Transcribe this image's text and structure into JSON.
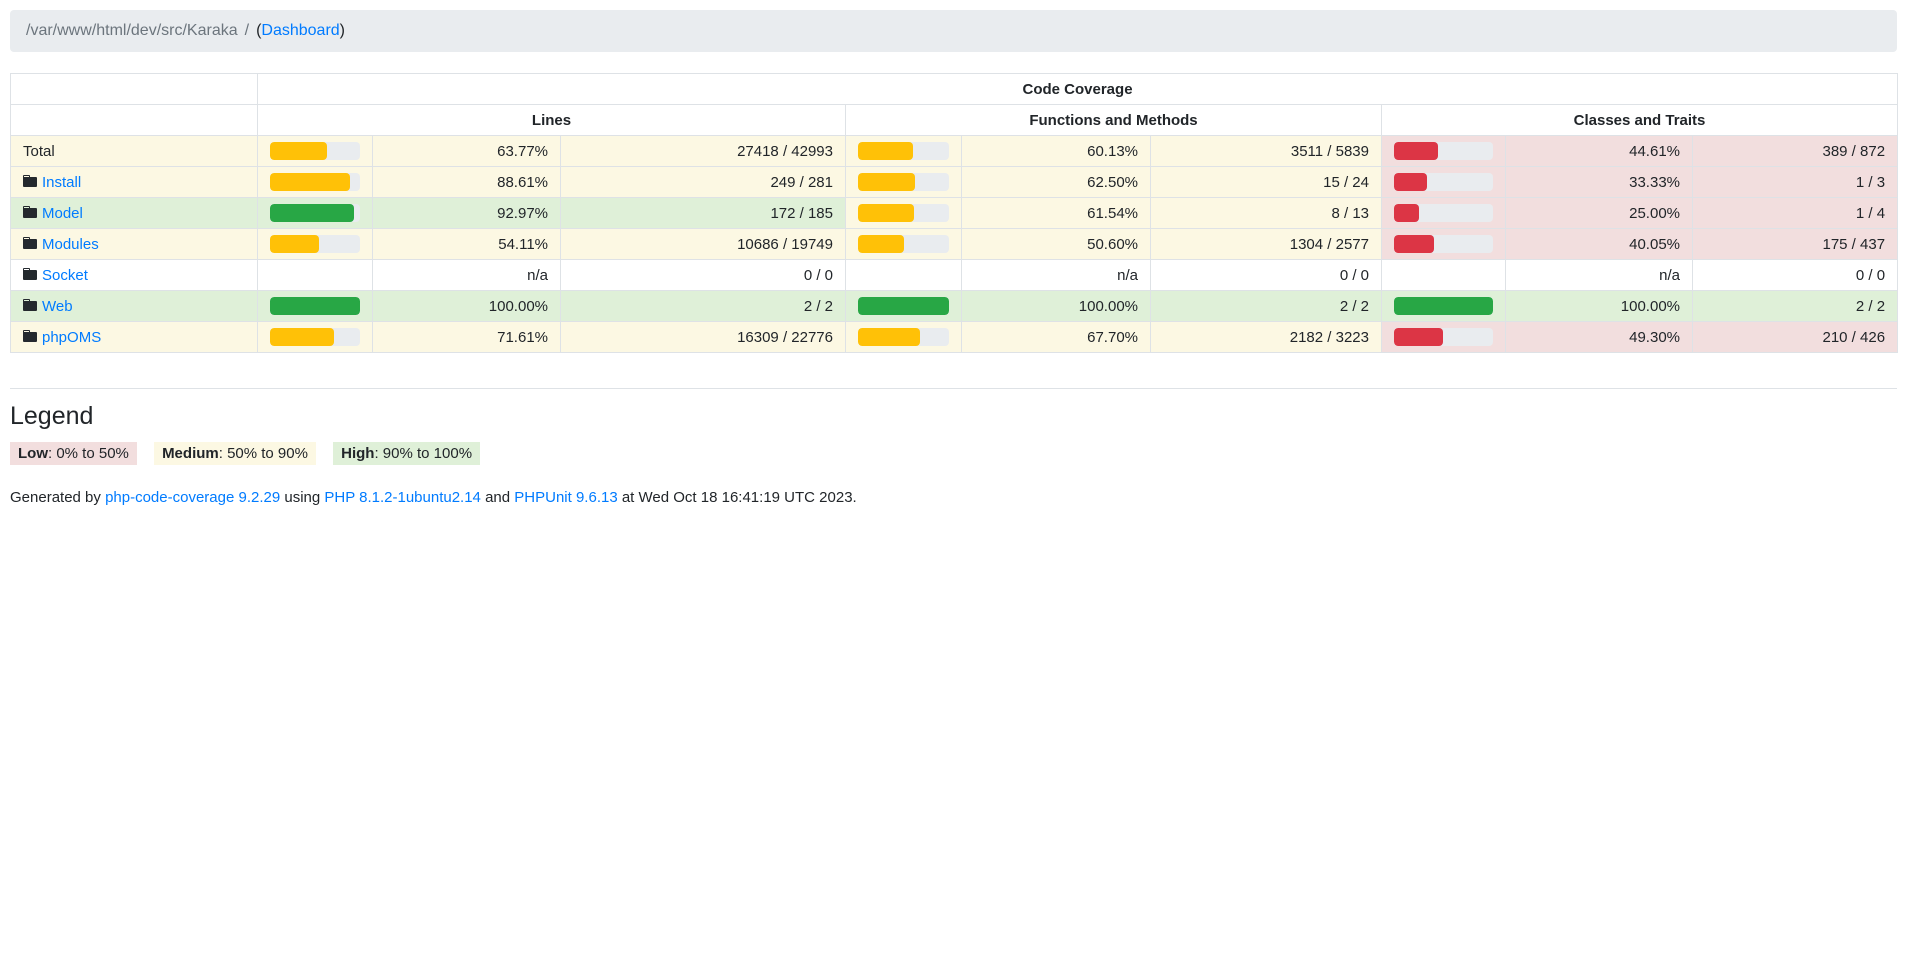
{
  "breadcrumb": {
    "path": "/var/www/html/dev/src/Karaka",
    "separator": "/",
    "link_prefix": "(",
    "link": "Dashboard",
    "link_suffix": ")"
  },
  "table": {
    "title": "Code Coverage",
    "sections": [
      "Lines",
      "Functions and Methods",
      "Classes and Traits"
    ],
    "rows": [
      {
        "name": "Total",
        "is_link": false,
        "icon": "none",
        "name_level": "warning",
        "sections": [
          {
            "level": "warning",
            "pct": "63.77%",
            "pct_num": 63.77,
            "ratio": "27418 / 42993"
          },
          {
            "level": "warning",
            "pct": "60.13%",
            "pct_num": 60.13,
            "ratio": "3511 / 5839"
          },
          {
            "level": "danger",
            "pct": "44.61%",
            "pct_num": 44.61,
            "ratio": "389 / 872"
          }
        ]
      },
      {
        "name": "Install",
        "is_link": true,
        "icon": "folder-icon",
        "name_level": "warning",
        "sections": [
          {
            "level": "warning",
            "pct": "88.61%",
            "pct_num": 88.61,
            "ratio": "249 / 281"
          },
          {
            "level": "warning",
            "pct": "62.50%",
            "pct_num": 62.5,
            "ratio": "15 / 24"
          },
          {
            "level": "danger",
            "pct": "33.33%",
            "pct_num": 33.33,
            "ratio": "1 / 3"
          }
        ]
      },
      {
        "name": "Model",
        "is_link": true,
        "icon": "folder-icon",
        "name_level": "success",
        "sections": [
          {
            "level": "success",
            "pct": "92.97%",
            "pct_num": 92.97,
            "ratio": "172 / 185"
          },
          {
            "level": "warning",
            "pct": "61.54%",
            "pct_num": 61.54,
            "ratio": "8 / 13"
          },
          {
            "level": "danger",
            "pct": "25.00%",
            "pct_num": 25.0,
            "ratio": "1 / 4"
          }
        ]
      },
      {
        "name": "Modules",
        "is_link": true,
        "icon": "folder-icon",
        "name_level": "warning",
        "sections": [
          {
            "level": "warning",
            "pct": "54.11%",
            "pct_num": 54.11,
            "ratio": "10686 / 19749"
          },
          {
            "level": "warning",
            "pct": "50.60%",
            "pct_num": 50.6,
            "ratio": "1304 / 2577"
          },
          {
            "level": "danger",
            "pct": "40.05%",
            "pct_num": 40.05,
            "ratio": "175 / 437"
          }
        ]
      },
      {
        "name": "Socket",
        "is_link": true,
        "icon": "folder-icon",
        "name_level": "none",
        "sections": [
          {
            "level": "none",
            "pct": "n/a",
            "pct_num": null,
            "ratio": "0 / 0"
          },
          {
            "level": "none",
            "pct": "n/a",
            "pct_num": null,
            "ratio": "0 / 0"
          },
          {
            "level": "none",
            "pct": "n/a",
            "pct_num": null,
            "ratio": "0 / 0"
          }
        ]
      },
      {
        "name": "Web",
        "is_link": true,
        "icon": "folder-icon",
        "name_level": "success",
        "sections": [
          {
            "level": "success",
            "pct": "100.00%",
            "pct_num": 100,
            "ratio": "2 / 2"
          },
          {
            "level": "success",
            "pct": "100.00%",
            "pct_num": 100,
            "ratio": "2 / 2"
          },
          {
            "level": "success",
            "pct": "100.00%",
            "pct_num": 100,
            "ratio": "2 / 2"
          }
        ]
      },
      {
        "name": "phpOMS",
        "is_link": true,
        "icon": "folder-icon",
        "name_level": "warning",
        "sections": [
          {
            "level": "warning",
            "pct": "71.61%",
            "pct_num": 71.61,
            "ratio": "16309 / 22776"
          },
          {
            "level": "warning",
            "pct": "67.70%",
            "pct_num": 67.7,
            "ratio": "2182 / 3223"
          },
          {
            "level": "danger",
            "pct": "49.30%",
            "pct_num": 49.3,
            "ratio": "210 / 426"
          }
        ]
      }
    ]
  },
  "legend": {
    "title": "Legend",
    "items": [
      {
        "label": "Low",
        "range": ": 0% to 50%",
        "level": "danger"
      },
      {
        "label": "Medium",
        "range": ": 50% to 90%",
        "level": "warning"
      },
      {
        "label": "High",
        "range": ": 90% to 100%",
        "level": "success"
      }
    ]
  },
  "footer": {
    "prefix": "Generated by ",
    "generator_link": "php-code-coverage 9.2.29",
    "using": " using ",
    "php_link": "PHP 8.1.2-1ubuntu2.14",
    "and": " and ",
    "phpunit_link": "PHPUnit 9.6.13",
    "suffix": " at Wed Oct 18 16:41:19 UTC 2023."
  },
  "colors": {
    "link": "#007bff",
    "breadcrumb_bg": "#e9ecef",
    "level_medium_bg": "#fcf8e3",
    "level_high_bg": "#dff0d8",
    "level_low_bg": "#f2dede",
    "bar_medium": "#ffc107",
    "bar_high": "#28a745",
    "bar_low": "#dc3545",
    "bar_track": "#e9ecef",
    "table_border": "#dee2e6"
  }
}
